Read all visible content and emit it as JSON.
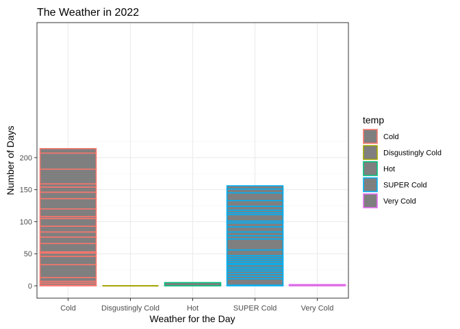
{
  "chart_data": {
    "type": "bar",
    "title": "The Weather in 2022",
    "xlabel": "Weather for the Day",
    "ylabel": "Number of Days",
    "categories": [
      "Cold",
      "Disgustingly Cold",
      "Hot",
      "SUPER Cold",
      "Very Cold"
    ],
    "values": [
      214,
      0,
      5,
      156,
      2
    ],
    "ylim": [
      0,
      225
    ],
    "yticks": [
      0,
      50,
      100,
      150,
      200
    ],
    "grid": true,
    "fill_color": "#7f7f7f",
    "legend": {
      "title": "temp",
      "position": "right",
      "entries": [
        {
          "label": "Cold",
          "color": "#F8766D"
        },
        {
          "label": "Disgustingly Cold",
          "color": "#A3A500"
        },
        {
          "label": "Hot",
          "color": "#00BF7D"
        },
        {
          "label": "SUPER Cold",
          "color": "#00B0F6"
        },
        {
          "label": "Very Cold",
          "color": "#E76BF3"
        }
      ]
    },
    "stack_segments": {
      "Cold": [
        1,
        4,
        7,
        13,
        33,
        46,
        51,
        53,
        66,
        76,
        84,
        93,
        105,
        108,
        120,
        136,
        146,
        154,
        159,
        182,
        207,
        214
      ],
      "Disgustingly Cold": [
        0
      ],
      "Hot": [
        5
      ],
      "SUPER Cold": [
        1,
        11,
        15,
        19,
        23,
        26,
        29,
        33,
        35,
        38,
        41,
        44,
        47,
        56,
        73,
        78,
        84,
        92,
        98,
        101,
        111,
        114,
        118,
        124,
        133,
        145,
        151,
        156
      ],
      "Very Cold": [
        2
      ]
    }
  }
}
